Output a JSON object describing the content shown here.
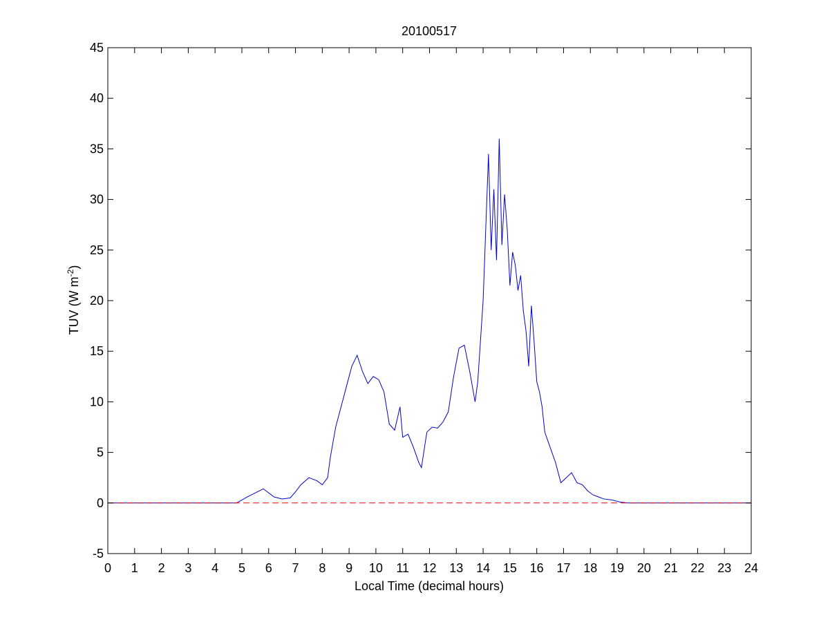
{
  "chart_data": {
    "type": "line",
    "title": "20100517",
    "xlabel": "Local Time (decimal hours)",
    "ylabel": {
      "main": "TUV (W m",
      "superscript": "-2",
      "close": ")"
    },
    "xlim": [
      0,
      24
    ],
    "ylim": [
      -5,
      45
    ],
    "xticks": [
      "0",
      "1",
      "2",
      "3",
      "4",
      "5",
      "6",
      "7",
      "8",
      "9",
      "10",
      "11",
      "12",
      "13",
      "14",
      "15",
      "16",
      "17",
      "18",
      "19",
      "20",
      "21",
      "22",
      "23",
      "24"
    ],
    "yticks": [
      "-5",
      "0",
      "5",
      "10",
      "15",
      "20",
      "25",
      "30",
      "35",
      "40",
      "45"
    ],
    "grid": false,
    "colors": {
      "tuv": "#0000cc",
      "baseline": "#ff0000"
    },
    "series": [
      {
        "style": "solid",
        "x": [
          0,
          4.8,
          5.0,
          5.2,
          5.5,
          5.8,
          6.0,
          6.2,
          6.5,
          6.8,
          7.0,
          7.2,
          7.5,
          7.8,
          8.0,
          8.2,
          8.3,
          8.5,
          8.7,
          8.9,
          9.1,
          9.3,
          9.5,
          9.7,
          9.9,
          10.1,
          10.3,
          10.5,
          10.7,
          10.9,
          11.0,
          11.2,
          11.4,
          11.6,
          11.7,
          11.9,
          12.1,
          12.3,
          12.5,
          12.7,
          12.9,
          13.1,
          13.3,
          13.5,
          13.7,
          13.8,
          14.0,
          14.2,
          14.3,
          14.4,
          14.5,
          14.6,
          14.7,
          14.8,
          14.9,
          15.0,
          15.1,
          15.2,
          15.3,
          15.4,
          15.5,
          15.6,
          15.7,
          15.8,
          15.9,
          16.0,
          16.1,
          16.2,
          16.3,
          16.5,
          16.7,
          16.9,
          17.1,
          17.3,
          17.5,
          17.7,
          17.9,
          18.1,
          18.3,
          18.5,
          18.8,
          19.1,
          19.4,
          24
        ],
        "y": [
          0,
          0,
          0.3,
          0.6,
          1.0,
          1.4,
          1.0,
          0.6,
          0.4,
          0.5,
          1.1,
          1.8,
          2.5,
          2.2,
          1.8,
          2.5,
          4.5,
          7.5,
          9.5,
          11.5,
          13.5,
          14.6,
          13.0,
          11.8,
          12.5,
          12.2,
          11.0,
          7.8,
          7.2,
          9.5,
          6.5,
          6.8,
          5.5,
          4.0,
          3.5,
          7.0,
          7.5,
          7.4,
          8.0,
          9.0,
          12.5,
          15.3,
          15.6,
          13.0,
          10.0,
          12.0,
          20.0,
          34.5,
          25.0,
          31.0,
          24.0,
          36.0,
          25.5,
          30.5,
          27.0,
          21.5,
          24.8,
          23.5,
          21.0,
          22.5,
          19.0,
          17.0,
          13.5,
          19.5,
          16.0,
          12.0,
          11.0,
          9.5,
          7.0,
          5.5,
          4.0,
          2.0,
          2.5,
          3.0,
          2.0,
          1.8,
          1.2,
          0.8,
          0.6,
          0.4,
          0.3,
          0.1,
          0,
          0
        ]
      },
      {
        "style": "dashed",
        "x": [
          0,
          24
        ],
        "y": [
          0,
          0
        ]
      }
    ]
  }
}
